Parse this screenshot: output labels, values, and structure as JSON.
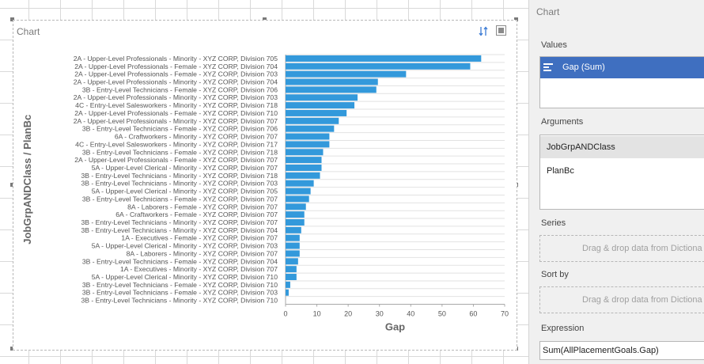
{
  "chart_panel": {
    "title": "Chart",
    "toolbar_icons": [
      "sort-order-icon",
      "maximize-icon"
    ]
  },
  "chart_data": {
    "type": "bar",
    "orientation": "horizontal",
    "bar_color": "#3399db",
    "xlabel": "Gap",
    "ylabel": "JobGrpANDClass / PlanBc",
    "xlim": [
      0,
      70
    ],
    "xticks": [
      "0",
      "10",
      "20",
      "30",
      "40",
      "50",
      "60",
      "70"
    ],
    "grid": "horizontal",
    "categories": [
      "2A - Upper-Level Professionals - Minority - XYZ CORP, Division 705",
      "2A - Upper-Level Professionals - Female - XYZ CORP, Division 704",
      "2A - Upper-Level Professionals - Female - XYZ CORP, Division 703",
      "2A - Upper-Level Professionals - Minority - XYZ CORP, Division 704",
      "3B - Entry-Level Technicians - Female - XYZ CORP, Division 706",
      "2A - Upper-Level Professionals - Minority - XYZ CORP, Division 703",
      "4C - Entry-Level Salesworkers - Minority - XYZ CORP, Division 718",
      "2A - Upper-Level Professionals - Female - XYZ CORP, Division 710",
      "2A - Upper-Level Professionals - Minority - XYZ CORP, Division 707",
      "3B - Entry-Level Technicians - Female - XYZ CORP, Division 706",
      "6A - Craftworkers - Minority - XYZ CORP, Division 707",
      "4C - Entry-Level Salesworkers - Minority - XYZ CORP, Division 717",
      "3B - Entry-Level Technicians - Female - XYZ CORP, Division 718",
      "2A - Upper-Level Professionals - Female - XYZ CORP, Division 707",
      "5A - Upper-Level Clerical - Minority - XYZ CORP, Division 707",
      "3B - Entry-Level Technicians - Minority - XYZ CORP, Division 718",
      "3B - Entry-Level Technicians - Minority - XYZ CORP, Division 703",
      "5A - Upper-Level Clerical - Minority - XYZ CORP, Division 705",
      "3B - Entry-Level Technicians - Female - XYZ CORP, Division 707",
      "8A - Laborers - Female - XYZ CORP, Division 707",
      "6A - Craftworkers - Female - XYZ CORP, Division 707",
      "3B - Entry-Level Technicians - Minority - XYZ CORP, Division 707",
      "3B - Entry-Level Technicians - Minority - XYZ CORP, Division 704",
      "1A - Executives - Female - XYZ CORP, Division 707",
      "5A - Upper-Level Clerical - Minority - XYZ CORP, Division 703",
      "8A - Laborers - Minority - XYZ CORP, Division 707",
      "3B - Entry-Level Technicians - Female - XYZ CORP, Division 704",
      "1A - Executives - Minority - XYZ CORP, Division 707",
      "5A - Upper-Level Clerical - Minority - XYZ CORP, Division 710",
      "3B - Entry-Level Technicians - Female - XYZ CORP, Division 710",
      "3B - Entry-Level Technicians - Female - XYZ CORP, Division 703",
      "3B - Entry-Level Technicians - Minority - XYZ CORP, Division 710"
    ],
    "values": [
      62.5,
      59,
      38.5,
      29.5,
      29,
      23,
      22,
      19.5,
      17,
      15.5,
      14,
      14,
      12,
      11.5,
      11.5,
      11,
      9,
      8,
      7.5,
      6.5,
      6,
      6,
      5,
      4.5,
      4.5,
      4.5,
      4,
      3.5,
      3.5,
      1.5,
      1,
      0
    ]
  },
  "pane": {
    "title": "Chart",
    "values_label": "Values",
    "values_item": "Gap (Sum)",
    "arguments_label": "Arguments",
    "arguments": [
      "JobGrpANDClass",
      "PlanBc"
    ],
    "series_label": "Series",
    "series_drop": "Drag & drop data from Dictiona",
    "sortby_label": "Sort by",
    "sortby_drop": "Drag & drop data from Dictiona",
    "expression_label": "Expression",
    "expression_value": "Sum(AllPlacementGoals.Gap)"
  }
}
